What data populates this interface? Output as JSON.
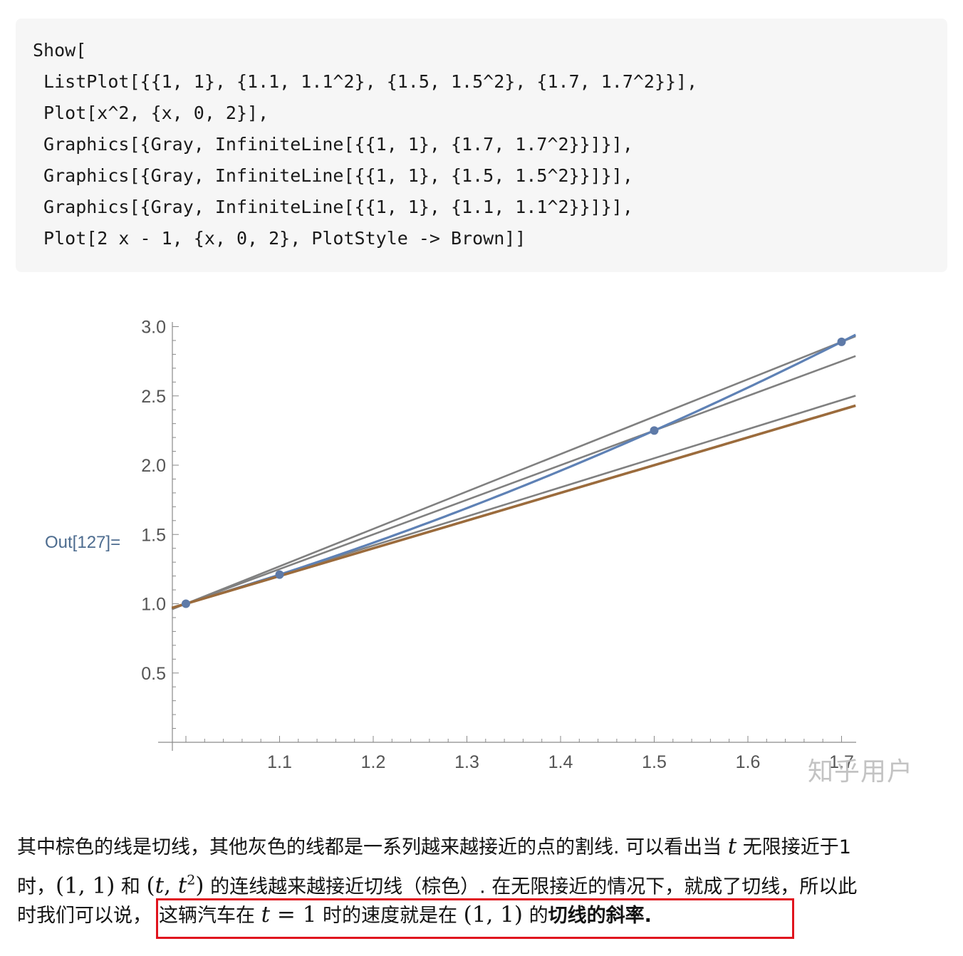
{
  "code": {
    "lines": [
      "Show[",
      " ListPlot[{{1, 1}, {1.1, 1.1^2}, {1.5, 1.5^2}, {1.7, 1.7^2}}],",
      " Plot[x^2, {x, 0, 2}],",
      " Graphics[{Gray, InfiniteLine[{{1, 1}, {1.7, 1.7^2}}]}],",
      " Graphics[{Gray, InfiniteLine[{{1, 1}, {1.5, 1.5^2}}]}],",
      " Graphics[{Gray, InfiniteLine[{{1, 1}, {1.1, 1.1^2}}]}],",
      " Plot[2 x - 1, {x, 0, 2}, PlotStyle -> Brown]]"
    ]
  },
  "output_label": "Out[127]=",
  "watermark": "知乎用户",
  "colors": {
    "curve": "#5e81b5",
    "secant": "#808080",
    "tangent": "#9b6b3c",
    "point": "#5e7aa8",
    "highlight_border": "#e0141e",
    "out_label": "#4d6c8f"
  },
  "chart_data": {
    "type": "line",
    "title": "",
    "xlabel": "",
    "ylabel": "",
    "xlim": [
      0.985,
      1.715
    ],
    "ylim": [
      0.0,
      3.02
    ],
    "x_ticks": [
      1.1,
      1.2,
      1.3,
      1.4,
      1.5,
      1.6
    ],
    "x_tick_labels": [
      "1.1",
      "1.2",
      "1.3",
      "1.4",
      "1.5",
      "1.6"
    ],
    "x_tick_partial_label": "1.7",
    "y_ticks": [
      0.5,
      1.0,
      1.5,
      2.0,
      2.5,
      3.0
    ],
    "y_tick_labels": [
      "0.5",
      "1.0",
      "1.5",
      "2.0",
      "2.5",
      "3.0"
    ],
    "points": [
      {
        "x": 1.0,
        "y": 1.0
      },
      {
        "x": 1.1,
        "y": 1.21
      },
      {
        "x": 1.5,
        "y": 2.25
      },
      {
        "x": 1.7,
        "y": 2.89
      }
    ],
    "curve": {
      "expression": "x^2"
    },
    "secant_lines": [
      {
        "through": [
          [
            1,
            1
          ],
          [
            1.7,
            2.89
          ]
        ],
        "slope": 2.7
      },
      {
        "through": [
          [
            1,
            1
          ],
          [
            1.5,
            2.25
          ]
        ],
        "slope": 2.5
      },
      {
        "through": [
          [
            1,
            1
          ],
          [
            1.1,
            1.21
          ]
        ],
        "slope": 2.1
      }
    ],
    "tangent_line": {
      "expression": "2 x - 1",
      "slope": 2.0
    },
    "grid": false,
    "legend": "none"
  },
  "paragraph": {
    "line1_a": "其中棕色的线是切线，其他灰色的线都是一系列越来越接近的点的割线. 可以看出当 ",
    "line1_t": "t",
    "line1_b": " 无限接近于1",
    "line2_a": "时，",
    "line2_m1": "(1, 1)",
    "line2_b": " 和 ",
    "line2_m2_open": "(",
    "line2_m2_t": "t",
    "line2_m2_sep": ", ",
    "line2_m2_t2": "t",
    "line2_m2_exp": "2",
    "line2_m2_close": ")",
    "line2_c": " 的连线越来越接近切线（棕色）. 在无限接近的情况下，就成了切线，所以此",
    "line3_a": "时我们可以说，",
    "line3_b": "这辆汽车在 ",
    "line3_t": "t",
    "line3_eq": " = 1",
    "line3_c": " 时的速度就是在 ",
    "line3_m": "(1, 1)",
    "line3_d": " 的",
    "line3_bold": "切线的斜率",
    "line3_end": "."
  }
}
